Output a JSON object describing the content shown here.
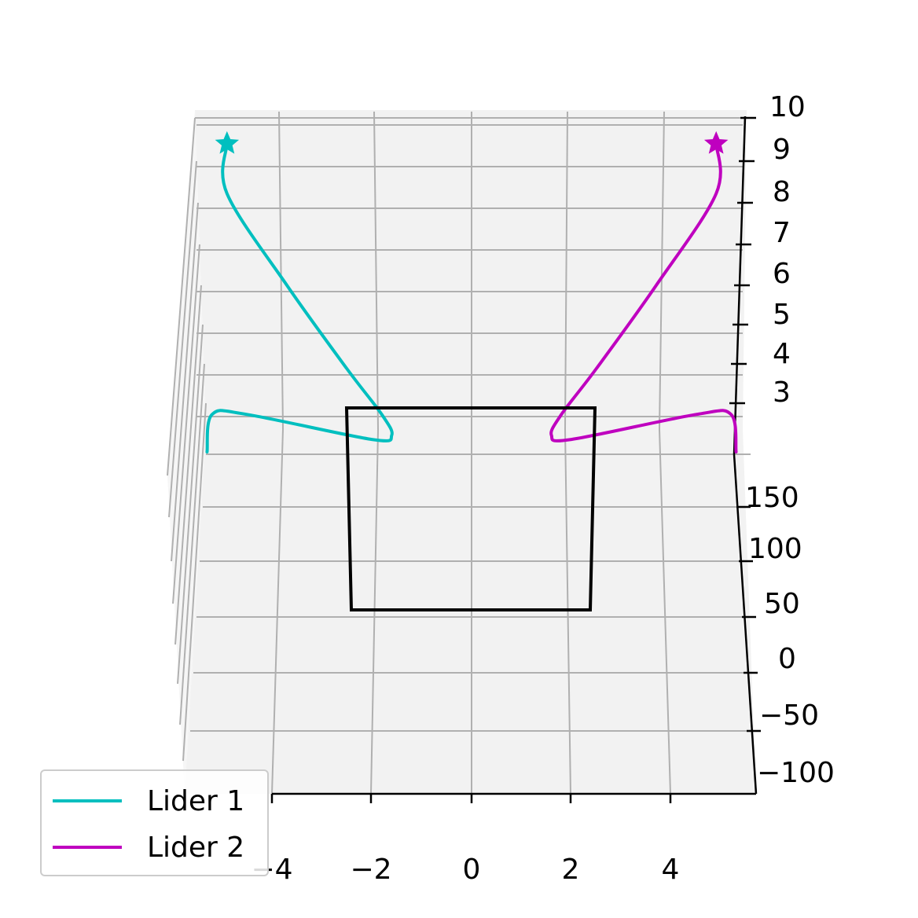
{
  "chart_data": {
    "type": "line",
    "projection": "3d",
    "title": "",
    "xlabel": "",
    "ylabel": "",
    "zlabel": "",
    "x_ticks": [
      "−4",
      "−2",
      "0",
      "2",
      "4"
    ],
    "y_ticks": [
      "−100",
      "−50",
      "0",
      "50",
      "100",
      "150"
    ],
    "z_ticks": [
      "3",
      "4",
      "5",
      "6",
      "7",
      "8",
      "9",
      "10"
    ],
    "xlim": [
      -6,
      6
    ],
    "ylim": [
      -100,
      200
    ],
    "zlim": [
      2,
      10
    ],
    "grid": true,
    "legend_position": "lower left",
    "series": [
      {
        "name": "Lider 1",
        "color": "#00bfbf",
        "end_marker": "star",
        "points": [
          {
            "x": -5.3,
            "z": 2.0
          },
          {
            "x": -5.2,
            "z": 2.9
          },
          {
            "x": -4.5,
            "z": 2.9
          },
          {
            "x": -2.0,
            "z": 2.3
          },
          {
            "x": -1.6,
            "z": 2.4
          },
          {
            "x": -1.8,
            "z": 2.9
          },
          {
            "x": -2.5,
            "z": 4.0
          },
          {
            "x": -3.7,
            "z": 6.0
          },
          {
            "x": -4.9,
            "z": 8.2
          },
          {
            "x": -4.9,
            "z": 9.4
          }
        ]
      },
      {
        "name": "Lider 2",
        "color": "#bf00bf",
        "end_marker": "star",
        "points": [
          {
            "x": 5.3,
            "z": 2.0
          },
          {
            "x": 5.2,
            "z": 2.9
          },
          {
            "x": 4.5,
            "z": 2.9
          },
          {
            "x": 2.0,
            "z": 2.3
          },
          {
            "x": 1.6,
            "z": 2.4
          },
          {
            "x": 1.8,
            "z": 2.9
          },
          {
            "x": 2.5,
            "z": 4.0
          },
          {
            "x": 3.7,
            "z": 6.0
          },
          {
            "x": 4.9,
            "z": 8.2
          },
          {
            "x": 4.9,
            "z": 9.4
          }
        ]
      },
      {
        "name": "",
        "color": "#000000",
        "closed": true,
        "points": [
          {
            "x": -2.5,
            "y": 50
          },
          {
            "x": 2.5,
            "y": 50
          },
          {
            "x": 2.5,
            "y": 150
          },
          {
            "x": -2.5,
            "y": 150
          }
        ]
      }
    ]
  }
}
